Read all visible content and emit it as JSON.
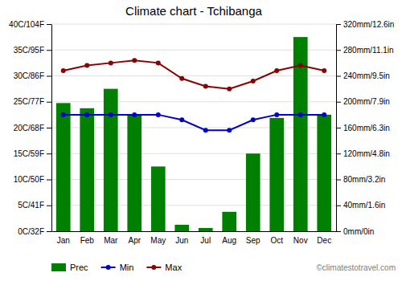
{
  "chart_data": {
    "type": "bar",
    "title": "Climate chart - Tchibanga",
    "categories": [
      "Jan",
      "Feb",
      "Mar",
      "Apr",
      "May",
      "Jun",
      "Jul",
      "Aug",
      "Sep",
      "Oct",
      "Nov",
      "Dec"
    ],
    "series": [
      {
        "name": "Prec",
        "type": "bar",
        "axis": "y2",
        "color": "#008000",
        "values": [
          198,
          190,
          220,
          180,
          100,
          10,
          5,
          30,
          120,
          175,
          300,
          180
        ]
      },
      {
        "name": "Min",
        "type": "line",
        "marker": "circle",
        "color": "#0000CD",
        "values": [
          22.5,
          22.5,
          22.5,
          22.5,
          22.5,
          21.5,
          19.5,
          19.5,
          21.5,
          22.5,
          22.5,
          22.5
        ]
      },
      {
        "name": "Max",
        "type": "line",
        "marker": "circle",
        "color": "#8B0000",
        "values": [
          31.0,
          32.0,
          32.5,
          33.0,
          32.5,
          29.5,
          28.0,
          27.5,
          29.0,
          31.0,
          32.0,
          31.0
        ]
      }
    ],
    "ylim": [
      0,
      40
    ],
    "yticks": [
      {
        "value": 0,
        "label": "0C/32F"
      },
      {
        "value": 5,
        "label": "5C/41F"
      },
      {
        "value": 10,
        "label": "10C/50F"
      },
      {
        "value": 15,
        "label": "15C/59F"
      },
      {
        "value": 20,
        "label": "20C/68F"
      },
      {
        "value": 25,
        "label": "25C/77F"
      },
      {
        "value": 30,
        "label": "30C/86F"
      },
      {
        "value": 35,
        "label": "35C/95F"
      },
      {
        "value": 40,
        "label": "40C/104F"
      }
    ],
    "y2lim": [
      0,
      320
    ],
    "y2ticks": [
      {
        "value": 0,
        "label": "0mm/0in"
      },
      {
        "value": 40,
        "label": "40mm/1.6in"
      },
      {
        "value": 80,
        "label": "80mm/3.2in"
      },
      {
        "value": 120,
        "label": "120mm/4.8in"
      },
      {
        "value": 160,
        "label": "160mm/6.3in"
      },
      {
        "value": 200,
        "label": "200mm/7.9in"
      },
      {
        "value": 240,
        "label": "240mm/9.5in"
      },
      {
        "value": 280,
        "label": "280mm/11.1in"
      },
      {
        "value": 320,
        "label": "320mm/12.6in"
      }
    ],
    "grid": true,
    "legend": "bottom",
    "annotations": [
      "©climatestotravel.com"
    ]
  }
}
